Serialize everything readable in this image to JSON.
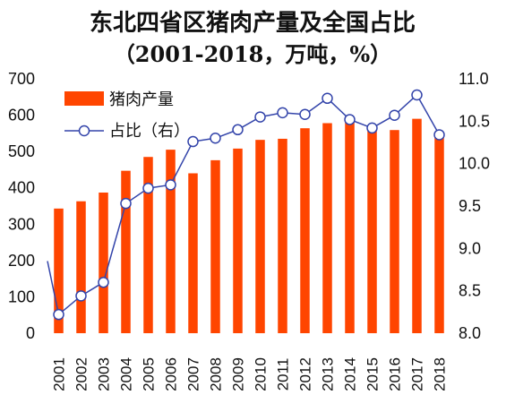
{
  "chart_data": {
    "type": "bar",
    "title": "东北四省区猪肉产量及全国占比",
    "subtitle": "（2001-2018，万吨，%）",
    "categories": [
      "2001",
      "2002",
      "2003",
      "2004",
      "2005",
      "2006",
      "2007",
      "2008",
      "2009",
      "2010",
      "2011",
      "2012",
      "2013",
      "2014",
      "2015",
      "2016",
      "2017",
      "2018"
    ],
    "series": [
      {
        "name": "猪肉产量",
        "type": "bar",
        "axis": "left",
        "color": "#ff4500",
        "values": [
          343,
          363,
          387,
          447,
          485,
          505,
          440,
          476,
          508,
          532,
          535,
          564,
          578,
          590,
          569,
          559,
          590,
          549
        ]
      },
      {
        "name": "占比（右）",
        "type": "line",
        "axis": "right",
        "color": "#3344aa",
        "values": [
          8.22,
          8.44,
          8.6,
          9.53,
          9.71,
          9.75,
          10.26,
          10.3,
          10.4,
          10.55,
          10.6,
          10.58,
          10.77,
          10.52,
          10.42,
          10.57,
          10.81,
          10.34
        ]
      }
    ],
    "y_left": {
      "range": [
        0,
        700
      ],
      "ticks": [
        "0",
        "100",
        "200",
        "300",
        "400",
        "500",
        "600",
        "700"
      ]
    },
    "y_right": {
      "range": [
        8.0,
        11.0
      ],
      "ticks": [
        "8.0",
        "8.5",
        "9.0",
        "9.5",
        "10.0",
        "10.5",
        "11.0"
      ]
    },
    "grid": false,
    "legend_position": "top-left"
  }
}
